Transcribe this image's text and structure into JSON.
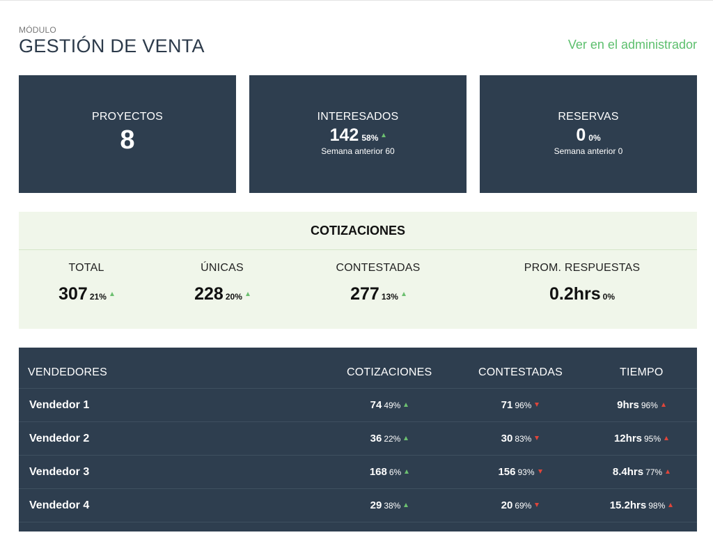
{
  "header": {
    "module_label": "MÓDULO",
    "title": "GESTIÓN DE VENTA",
    "admin_link": "Ver en el administrador"
  },
  "cards": [
    {
      "title": "PROYECTOS",
      "value": "8"
    },
    {
      "title": "INTERESADOS",
      "value": "142",
      "pct": "58%",
      "trend": "up",
      "sub": "Semana anterior 60"
    },
    {
      "title": "RESERVAS",
      "value": "0",
      "pct": "0%",
      "sub": "Semana anterior 0"
    }
  ],
  "quotes": {
    "title": "COTIZACIONES",
    "stats": [
      {
        "label": "TOTAL",
        "value": "307",
        "pct": "21%",
        "trend": "up"
      },
      {
        "label": "ÚNICAS",
        "value": "228",
        "pct": "20%",
        "trend": "up"
      },
      {
        "label": "CONTESTADAS",
        "value": "277",
        "pct": "13%",
        "trend": "up"
      },
      {
        "label": "PROM. RESPUESTAS",
        "value": "0.2hrs",
        "pct": "0%"
      }
    ]
  },
  "sellers": {
    "headers": [
      "VENDEDORES",
      "COTIZACIONES",
      "CONTESTADAS",
      "TIEMPO"
    ],
    "rows": [
      {
        "name": "Vendedor 1",
        "quotes": "74",
        "quotes_pct": "49%",
        "answered": "71",
        "answered_pct": "96%",
        "time": "9hrs",
        "time_pct": "96%"
      },
      {
        "name": "Vendedor 2",
        "quotes": "36",
        "quotes_pct": "22%",
        "answered": "30",
        "answered_pct": "83%",
        "time": "12hrs",
        "time_pct": "95%"
      },
      {
        "name": "Vendedor 3",
        "quotes": "168",
        "quotes_pct": "6%",
        "answered": "156",
        "answered_pct": "93%",
        "time": "8.4hrs",
        "time_pct": "77%"
      },
      {
        "name": "Vendedor 4",
        "quotes": "29",
        "quotes_pct": "38%",
        "answered": "20",
        "answered_pct": "69%",
        "time": "15.2hrs",
        "time_pct": "98%"
      }
    ]
  },
  "colors": {
    "dark_panel": "#2e3e4f",
    "link_green": "#5cbf6d",
    "trend_up": "#6cc070",
    "trend_bad": "#e0453a",
    "quotes_bg": "#f0f6ea"
  },
  "icons": {
    "up": "triangle-up-green-icon",
    "down": "triangle-down-red-icon",
    "up_bad": "triangle-up-red-icon"
  }
}
